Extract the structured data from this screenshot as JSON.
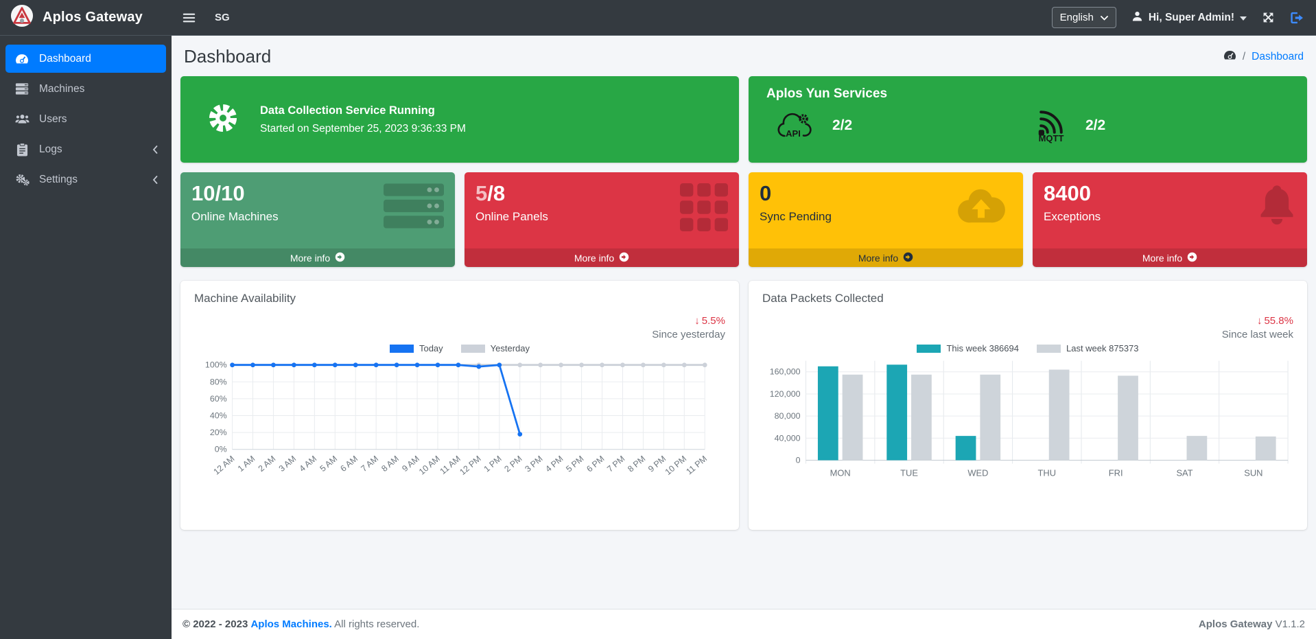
{
  "colors": {
    "accent": "#007bff",
    "banner_green": "#28a745",
    "box_green": "#4e9d74",
    "box_red": "#dc3545",
    "box_yellow": "#ffc107",
    "navbar_dark": "#343a40",
    "line_today": "#1673f2",
    "line_yesterday": "#ccd1d9",
    "bar_this_week": "#1ca6b4",
    "bar_last_week": "#ced4da"
  },
  "navbar": {
    "brand": "Aplos Gateway",
    "nav_shortcut": "SG",
    "language_select": {
      "value": "English"
    },
    "user_label": "Hi, Super Admin!"
  },
  "sidebar": {
    "items": [
      {
        "label": "Dashboard",
        "icon": "tachometer-icon",
        "active": true,
        "expandable": false
      },
      {
        "label": "Machines",
        "icon": "server-icon",
        "active": false,
        "expandable": false
      },
      {
        "label": "Users",
        "icon": "users-icon",
        "active": false,
        "expandable": false
      },
      {
        "label": "Logs",
        "icon": "clipboard-icon",
        "active": false,
        "expandable": true
      },
      {
        "label": "Settings",
        "icon": "gears-icon",
        "active": false,
        "expandable": true
      }
    ]
  },
  "page": {
    "title": "Dashboard",
    "breadcrumb": {
      "icon": "tachometer-icon",
      "separator": "/",
      "current": "Dashboard"
    }
  },
  "banners": {
    "service": {
      "icon": "gear-icon",
      "title": "Data Collection Service Running",
      "subtitle": "Started on September 25, 2023 9:36:33 PM"
    },
    "yun": {
      "title": "Aplos Yun Services",
      "services": [
        {
          "name": "API",
          "icon": "cloud-gear-api-icon",
          "status": "2/2"
        },
        {
          "name": "MQTT",
          "icon": "mqtt-broadcast-icon",
          "status": "2/2"
        }
      ]
    }
  },
  "stat_boxes": [
    {
      "value": "10/10",
      "label": "Online Machines",
      "more_info": "More info",
      "icon": "servers-icon",
      "color": "#4e9d74"
    },
    {
      "value_dim": "5",
      "value": "/8",
      "label": "Online Panels",
      "more_info": "More info",
      "icon": "grid-icon",
      "color": "#dc3545"
    },
    {
      "value": "0",
      "label": "Sync Pending",
      "more_info": "More info",
      "icon": "cloud-upload-icon",
      "color": "#ffc107"
    },
    {
      "value": "8400",
      "label": "Exceptions",
      "more_info": "More info",
      "icon": "bell-icon",
      "color": "#dc3545"
    }
  ],
  "chart_data": [
    {
      "id": "availability",
      "type": "line",
      "title": "Machine Availability",
      "delta": {
        "text": "5.5%",
        "direction": "down",
        "caption": "Since yesterday"
      },
      "x": [
        "12 AM",
        "1 AM",
        "2 AM",
        "3 AM",
        "4 AM",
        "5 AM",
        "6 AM",
        "7 AM",
        "8 AM",
        "9 AM",
        "10 AM",
        "11 AM",
        "12 PM",
        "1 PM",
        "2 PM",
        "3 PM",
        "4 PM",
        "5 PM",
        "6 PM",
        "7 PM",
        "8 PM",
        "9 PM",
        "10 PM",
        "11 PM"
      ],
      "ylim": [
        0,
        100
      ],
      "yticks": [
        0,
        20,
        40,
        60,
        80,
        100
      ],
      "ytick_suffix": "%",
      "grid": true,
      "legend_position": "top",
      "series": [
        {
          "name": "Today",
          "color": "#1673f2",
          "values": [
            100,
            100,
            100,
            100,
            100,
            100,
            100,
            100,
            100,
            100,
            100,
            100,
            98,
            100,
            18
          ]
        },
        {
          "name": "Yesterday",
          "color": "#ccd1d9",
          "values": [
            100,
            100,
            100,
            100,
            100,
            100,
            100,
            100,
            100,
            100,
            100,
            100,
            100,
            100,
            100,
            100,
            100,
            100,
            100,
            100,
            100,
            100,
            100,
            100
          ]
        }
      ]
    },
    {
      "id": "packets",
      "type": "bar",
      "title": "Data Packets Collected",
      "delta": {
        "text": "55.8%",
        "direction": "down",
        "caption": "Since last week"
      },
      "categories": [
        "MON",
        "TUE",
        "WED",
        "THU",
        "FRI",
        "SAT",
        "SUN"
      ],
      "ylim": [
        0,
        180000
      ],
      "yticks": [
        0,
        40000,
        80000,
        120000,
        160000
      ],
      "grid": true,
      "legend_position": "top",
      "series": [
        {
          "name": "This week",
          "legend_label": "This week 386694",
          "total": 386694,
          "color": "#1ca6b4",
          "values": [
            170000,
            173000,
            44000,
            0,
            0,
            0,
            0
          ]
        },
        {
          "name": "Last week",
          "legend_label": "Last week 875373",
          "total": 875373,
          "color": "#ced4da",
          "values": [
            155000,
            155000,
            155000,
            164000,
            153000,
            44000,
            43000
          ]
        }
      ]
    }
  ],
  "footer": {
    "copyright": "© 2022 - 2023",
    "company": "Aplos Machines.",
    "rights": "All rights reserved.",
    "app_name": "Aplos Gateway",
    "version": "V1.1.2"
  }
}
